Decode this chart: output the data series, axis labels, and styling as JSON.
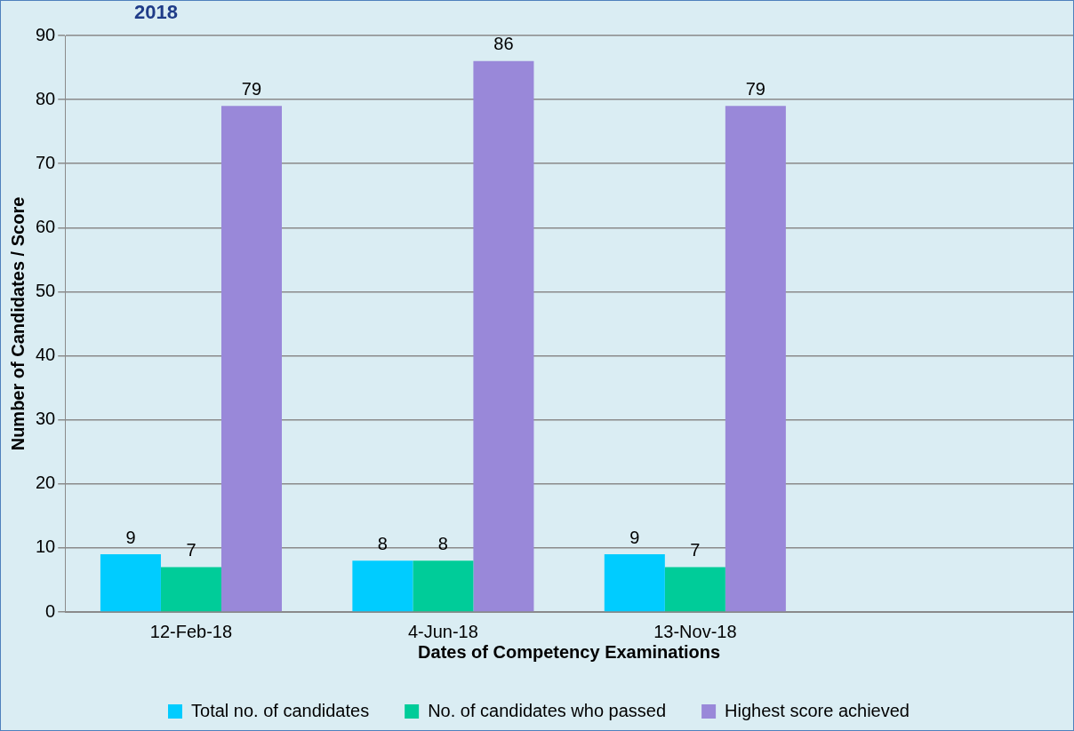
{
  "chart_data": {
    "type": "bar",
    "title": "2018",
    "xlabel": "Dates of Competency Examinations",
    "ylabel": "Number of Candidates / Score",
    "categories": [
      "12-Feb-18",
      "4-Jun-18",
      "13-Nov-18",
      null
    ],
    "series": [
      {
        "name": "Total no. of candidates",
        "color": "#00ccff",
        "values": [
          9,
          8,
          9,
          null
        ]
      },
      {
        "name": "No. of candidates who passed",
        "color": "#00cc99",
        "values": [
          7,
          8,
          7,
          null
        ]
      },
      {
        "name": "Highest score achieved",
        "color": "#9988d9",
        "values": [
          79,
          86,
          79,
          null
        ]
      }
    ],
    "ylim": [
      0,
      90
    ],
    "yticks": [
      0,
      10,
      20,
      30,
      40,
      50,
      60,
      70,
      80,
      90
    ],
    "grid": "y",
    "legend": "bottom",
    "data_labels": true
  }
}
